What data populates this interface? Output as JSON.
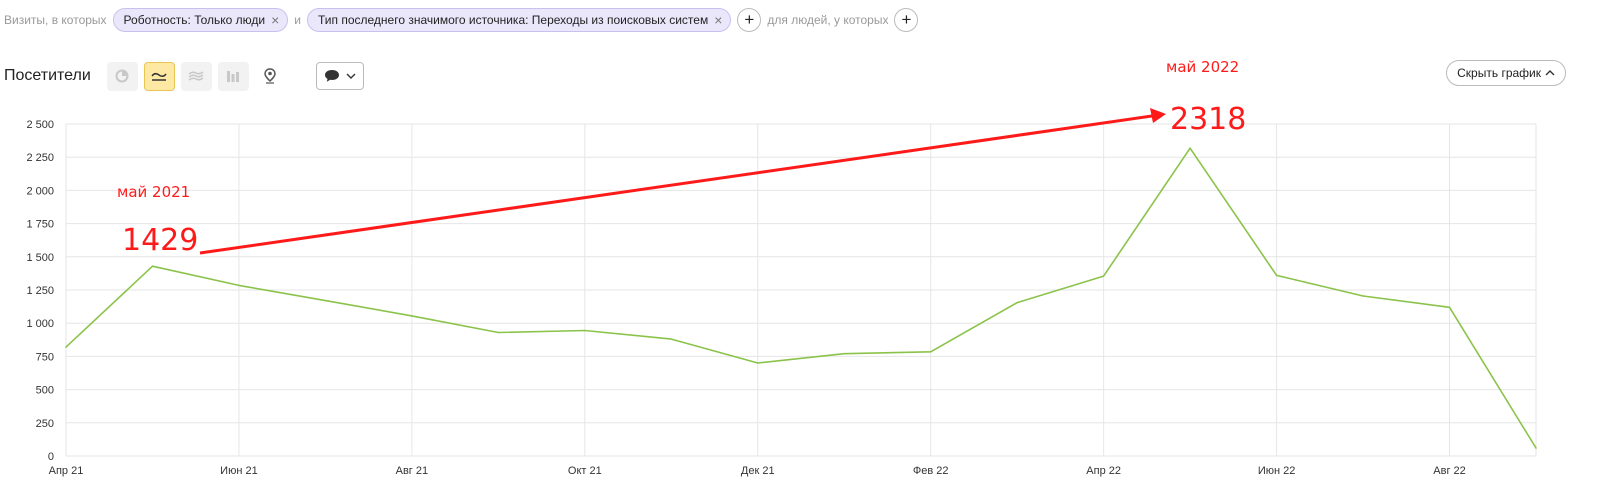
{
  "filters": {
    "prefix": "Визиты, в которых",
    "chips": [
      {
        "label": "Роботность: Только люди"
      },
      {
        "label": "Тип последнего значимого источника: Переходы из поисковых систем"
      }
    ],
    "conjunction": "и",
    "people_text": "для людей, у которых",
    "add_symbol": "+",
    "remove_symbol": "×"
  },
  "toolbar": {
    "metric_title": "Посетители",
    "active_view": "line",
    "views": [
      "pie-icon",
      "line-chart-icon",
      "area-chart-icon",
      "bar-chart-icon",
      "map-icon"
    ]
  },
  "hide_chart": {
    "label": "Скрыть график"
  },
  "colors": {
    "line": "#8bc34a",
    "annotation": "#ff1a1a",
    "grid": "#e6e6e6"
  },
  "chart_data": {
    "type": "line",
    "x": [
      "2021-04",
      "2021-05",
      "2021-06",
      "2021-07",
      "2021-08",
      "2021-09",
      "2021-10",
      "2021-11",
      "2021-12",
      "2022-01",
      "2022-02",
      "2022-03",
      "2022-04",
      "2022-05",
      "2022-06",
      "2022-07",
      "2022-08",
      "2022-09"
    ],
    "values": [
      820,
      1429,
      1285,
      1170,
      1055,
      930,
      945,
      880,
      700,
      770,
      785,
      1155,
      1355,
      2318,
      1360,
      1205,
      1120,
      60
    ],
    "x_tick_labels": [
      "Апр 21",
      "Июн 21",
      "Авг 21",
      "Окт 21",
      "Дек 21",
      "Фев 22",
      "Апр 22",
      "Июн 22",
      "Авг 22"
    ],
    "y_ticks": [
      "0",
      "250",
      "500",
      "750",
      "1 000",
      "1 250",
      "1 500",
      "1 750",
      "2 000",
      "2 250",
      "2 500"
    ],
    "ylim": [
      0,
      2500
    ],
    "grid": true,
    "annotations": [
      {
        "period": "май 2021",
        "value": "1429"
      },
      {
        "period": "май 2022",
        "value": "2318"
      }
    ]
  }
}
